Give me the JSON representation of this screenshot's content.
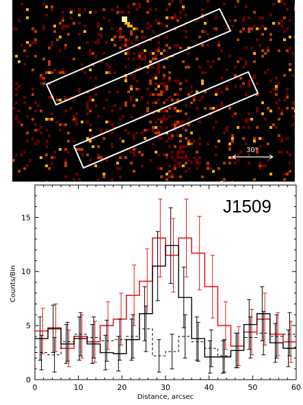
{
  "image_panel": {
    "scale_bar_label": "30\"",
    "colors": {
      "background": "#000000",
      "pixel_low": "#6a0000",
      "pixel_mid": "#b83a00",
      "pixel_high": "#ffb000",
      "pixel_peak": "#fff2a0",
      "region_outline": "#ffffff"
    }
  },
  "chart_data": {
    "type": "line",
    "style": "step",
    "label": "J1509",
    "xlabel": "Distance, arcsec",
    "ylabel": "Counts/Bin",
    "xlim": [
      0,
      60
    ],
    "ylim": [
      0,
      18
    ],
    "xticks": [
      0,
      10,
      20,
      30,
      40,
      50,
      60
    ],
    "yticks": [
      0,
      5,
      10,
      15
    ],
    "bin_width": 3,
    "x": [
      1.5,
      4.5,
      7.5,
      10.5,
      13.5,
      16.5,
      19.5,
      22.5,
      25.5,
      28.5,
      31.5,
      34.5,
      37.5,
      40.5,
      43.5,
      46.5,
      49.5,
      52.5,
      55.5,
      58.5
    ],
    "series": [
      {
        "color": "#e31a1c",
        "linestyle": "solid",
        "values": [
          4.5,
          4.8,
          2.9,
          4.0,
          3.5,
          5.0,
          5.6,
          7.8,
          9.1,
          13.1,
          11.5,
          13.1,
          11.7,
          8.6,
          5.0,
          3.1,
          4.4,
          5.6,
          4.2,
          3.5
        ],
        "errors": [
          2.1,
          2.2,
          1.7,
          2.0,
          1.9,
          2.2,
          2.4,
          2.8,
          3.0,
          3.6,
          3.4,
          3.6,
          3.4,
          2.9,
          2.2,
          1.8,
          2.1,
          2.4,
          2.0,
          1.9
        ]
      },
      {
        "color": "#000000",
        "linestyle": "solid",
        "values": [
          3.8,
          4.7,
          3.3,
          3.8,
          3.3,
          2.5,
          2.4,
          3.7,
          6.1,
          10.5,
          12.4,
          7.6,
          3.8,
          2.1,
          2.1,
          2.7,
          5.1,
          6.1,
          3.4,
          2.9
        ],
        "errors": [
          2.0,
          2.2,
          1.8,
          2.0,
          1.8,
          1.6,
          1.6,
          1.9,
          2.5,
          3.2,
          3.5,
          2.8,
          2.0,
          1.5,
          1.5,
          1.6,
          2.3,
          2.5,
          1.8,
          1.7
        ]
      },
      {
        "color": "#000000",
        "linestyle": "dashed",
        "values": [
          2.5,
          2.3,
          3.5,
          4.2,
          3.9,
          3.6,
          3.7,
          4.0,
          4.7,
          2.2,
          2.6,
          4.0,
          3.5,
          2.9,
          2.2,
          2.7,
          3.9,
          4.3,
          4.0,
          4.2
        ],
        "errors": [
          1.6,
          1.6,
          1.8,
          2.0,
          1.9,
          1.9,
          1.9,
          2.0,
          2.1,
          1.5,
          1.6,
          2.0,
          1.8,
          1.7,
          1.5,
          1.6,
          1.9,
          2.0,
          2.0,
          2.0
        ]
      }
    ]
  }
}
